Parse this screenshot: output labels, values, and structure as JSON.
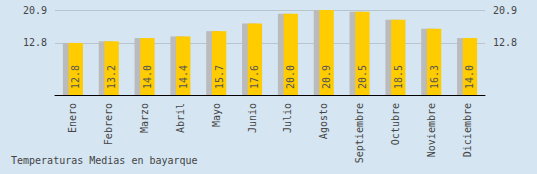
{
  "chart_data": {
    "type": "bar",
    "title": "Temperaturas Medias en bayarque",
    "categories": [
      "Enero",
      "Febrero",
      "Marzo",
      "Abril",
      "Mayo",
      "Junio",
      "Julio",
      "Agosto",
      "Septiembre",
      "Octubre",
      "Noviembre",
      "Diciembre"
    ],
    "values": [
      12.8,
      13.2,
      14.0,
      14.4,
      15.7,
      17.6,
      20.0,
      20.9,
      20.5,
      18.5,
      16.3,
      14.0
    ],
    "value_labels": [
      "12.8",
      "13.2",
      "14.0",
      "14.4",
      "15.7",
      "17.6",
      "20.0",
      "20.9",
      "20.5",
      "18.5",
      "16.3",
      "14.0"
    ],
    "color": "#ffcc00",
    "ylim": [
      0,
      20.9
    ],
    "yticks": [
      12.8,
      20.9
    ],
    "grid": true,
    "data_labels": true
  }
}
